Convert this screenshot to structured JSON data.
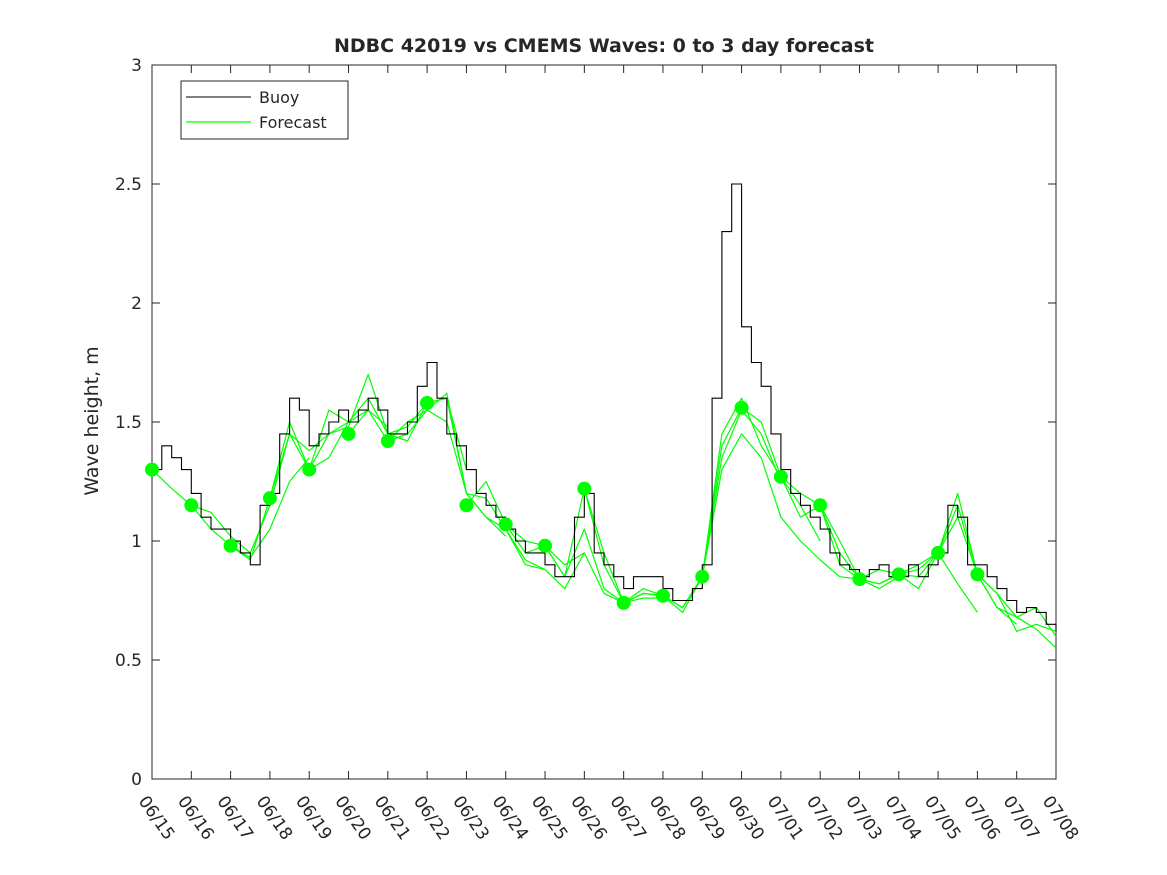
{
  "chart_data": {
    "type": "line",
    "title": "NDBC 42019 vs CMEMS Waves: 0 to 3 day forecast",
    "xlabel": "",
    "ylabel": "Wave height, m",
    "ylim": [
      0,
      3
    ],
    "yticks": [
      "0",
      "0.5",
      "1",
      "1.5",
      "2",
      "2.5",
      "3"
    ],
    "xticks": [
      "06/15",
      "06/16",
      "06/17",
      "06/18",
      "06/19",
      "06/20",
      "06/21",
      "06/22",
      "06/23",
      "06/24",
      "06/25",
      "06/26",
      "06/27",
      "06/28",
      "06/29",
      "06/30",
      "07/01",
      "07/02",
      "07/03",
      "07/04",
      "07/05",
      "07/06",
      "07/07",
      "07/08"
    ],
    "legend": {
      "position": "top-left",
      "entries": [
        "Buoy",
        "Forecast"
      ]
    },
    "grid": false,
    "colors": {
      "buoy": "#000000",
      "forecast": "#00ff00"
    },
    "buoy": {
      "name": "Buoy",
      "x": [
        0,
        0.25,
        0.5,
        0.75,
        1,
        1.25,
        1.5,
        1.75,
        2,
        2.25,
        2.5,
        2.75,
        3,
        3.25,
        3.5,
        3.75,
        4,
        4.25,
        4.5,
        4.75,
        5,
        5.25,
        5.5,
        5.75,
        6,
        6.25,
        6.5,
        6.75,
        7,
        7.25,
        7.5,
        7.75,
        8,
        8.25,
        8.5,
        8.75,
        9,
        9.25,
        9.5,
        9.75,
        10,
        10.25,
        10.5,
        10.75,
        11,
        11.25,
        11.5,
        11.75,
        12,
        12.25,
        12.5,
        12.75,
        13,
        13.25,
        13.5,
        13.75,
        14,
        14.25,
        14.5,
        14.75,
        15,
        15.25,
        15.5,
        15.75,
        16,
        16.25,
        16.5,
        16.75,
        17,
        17.25,
        17.5,
        17.75,
        18,
        18.25,
        18.5,
        18.75,
        19,
        19.25,
        19.5,
        19.75,
        20,
        20.25,
        20.5,
        20.75,
        21,
        21.25,
        21.5,
        21.75,
        22,
        22.25,
        22.5,
        22.75,
        23
      ],
      "y": [
        1.3,
        1.4,
        1.35,
        1.3,
        1.2,
        1.1,
        1.05,
        1.05,
        1.0,
        0.95,
        0.9,
        1.15,
        1.2,
        1.45,
        1.6,
        1.55,
        1.4,
        1.45,
        1.5,
        1.55,
        1.5,
        1.55,
        1.6,
        1.55,
        1.45,
        1.45,
        1.5,
        1.65,
        1.75,
        1.6,
        1.45,
        1.4,
        1.3,
        1.2,
        1.15,
        1.1,
        1.05,
        1.0,
        0.95,
        0.95,
        0.9,
        0.85,
        0.85,
        1.1,
        1.2,
        0.95,
        0.9,
        0.85,
        0.8,
        0.85,
        0.85,
        0.85,
        0.8,
        0.75,
        0.75,
        0.8,
        0.9,
        1.6,
        2.3,
        2.5,
        1.9,
        1.75,
        1.65,
        1.45,
        1.3,
        1.2,
        1.15,
        1.1,
        1.05,
        0.95,
        0.9,
        0.88,
        0.85,
        0.88,
        0.9,
        0.85,
        0.85,
        0.9,
        0.85,
        0.9,
        0.95,
        1.15,
        1.1,
        0.9,
        0.9,
        0.85,
        0.8,
        0.75,
        0.7,
        0.72,
        0.7,
        0.65,
        0.62
      ]
    },
    "forecast_runs": [
      {
        "name": "Forecast",
        "x": [
          0,
          0.5,
          1,
          1.5,
          2,
          2.5,
          3,
          3.5,
          4
        ],
        "y": [
          1.3,
          1.22,
          1.15,
          1.05,
          0.98,
          0.93,
          1.05,
          1.25,
          1.35
        ]
      },
      {
        "name": "Forecast",
        "x": [
          1,
          1.5,
          2,
          2.5,
          3,
          3.5,
          4,
          4.5,
          5
        ],
        "y": [
          1.15,
          1.12,
          1.02,
          0.95,
          1.15,
          1.45,
          1.3,
          1.35,
          1.5
        ]
      },
      {
        "name": "Forecast",
        "x": [
          2,
          2.5,
          3,
          3.5,
          4,
          4.5,
          5,
          5.5,
          6
        ],
        "y": [
          0.98,
          0.92,
          1.18,
          1.45,
          1.38,
          1.45,
          1.5,
          1.55,
          1.48
        ]
      },
      {
        "name": "Forecast",
        "x": [
          3,
          3.5,
          4,
          4.5,
          5,
          5.5,
          6,
          6.5,
          7
        ],
        "y": [
          1.18,
          1.5,
          1.3,
          1.55,
          1.5,
          1.6,
          1.45,
          1.48,
          1.58
        ]
      },
      {
        "name": "Forecast",
        "x": [
          4,
          4.5,
          5,
          5.5,
          6,
          6.5,
          7,
          7.5,
          8
        ],
        "y": [
          1.3,
          1.45,
          1.48,
          1.7,
          1.45,
          1.42,
          1.58,
          1.6,
          1.3
        ]
      },
      {
        "name": "Forecast",
        "x": [
          5,
          5.5,
          6,
          6.5,
          7,
          7.5,
          8,
          8.5,
          9
        ],
        "y": [
          1.45,
          1.55,
          1.42,
          1.5,
          1.55,
          1.62,
          1.2,
          1.1,
          1.02
        ]
      },
      {
        "name": "Forecast",
        "x": [
          6,
          6.5,
          7,
          7.5,
          8,
          8.5,
          9,
          9.5,
          10
        ],
        "y": [
          1.42,
          1.45,
          1.55,
          1.5,
          1.2,
          1.18,
          1.05,
          0.92,
          0.88
        ]
      },
      {
        "name": "Forecast",
        "x": [
          7,
          7.5,
          8,
          8.5,
          9,
          9.5,
          10,
          10.5,
          11
        ],
        "y": [
          1.58,
          1.6,
          1.2,
          1.1,
          1.05,
          0.9,
          0.88,
          0.8,
          0.95
        ]
      },
      {
        "name": "Forecast",
        "x": [
          8,
          8.5,
          9,
          9.5,
          10,
          10.5,
          11,
          11.5,
          12
        ],
        "y": [
          1.15,
          1.25,
          1.07,
          0.95,
          0.98,
          0.9,
          0.95,
          0.78,
          0.74
        ]
      },
      {
        "name": "Forecast",
        "x": [
          9,
          9.5,
          10,
          10.5,
          11,
          11.5,
          12,
          12.5,
          13
        ],
        "y": [
          1.07,
          1.0,
          0.98,
          0.85,
          1.05,
          0.8,
          0.74,
          0.76,
          0.76
        ]
      },
      {
        "name": "Forecast",
        "x": [
          10,
          10.5,
          11,
          11.5,
          12,
          12.5,
          13,
          13.5,
          14
        ],
        "y": [
          0.98,
          0.85,
          1.22,
          0.9,
          0.74,
          0.78,
          0.77,
          0.72,
          0.85
        ]
      },
      {
        "name": "Forecast",
        "x": [
          11,
          11.5,
          12,
          12.5,
          13,
          13.5,
          14,
          14.5,
          15
        ],
        "y": [
          1.22,
          0.95,
          0.74,
          0.8,
          0.77,
          0.72,
          0.85,
          1.4,
          1.56
        ]
      },
      {
        "name": "Forecast",
        "x": [
          12,
          12.5,
          13,
          13.5,
          14,
          14.5,
          15,
          15.5,
          16
        ],
        "y": [
          0.74,
          0.78,
          0.77,
          0.7,
          0.85,
          1.35,
          1.55,
          1.45,
          1.25
        ]
      },
      {
        "name": "Forecast",
        "x": [
          13,
          13.5,
          14,
          14.5,
          15,
          15.5,
          16,
          16.5,
          17
        ],
        "y": [
          0.77,
          0.72,
          0.85,
          1.45,
          1.6,
          1.4,
          1.27,
          1.15,
          1.0
        ]
      },
      {
        "name": "Forecast",
        "x": [
          14,
          14.5,
          15,
          15.5,
          16,
          16.5,
          17,
          17.5,
          18
        ],
        "y": [
          0.85,
          1.3,
          1.45,
          1.35,
          1.1,
          1.0,
          0.92,
          0.85,
          0.84
        ]
      },
      {
        "name": "Forecast",
        "x": [
          15,
          15.5,
          16,
          16.5,
          17,
          17.5,
          18,
          18.5,
          19
        ],
        "y": [
          1.56,
          1.5,
          1.27,
          1.2,
          1.15,
          0.95,
          0.84,
          0.8,
          0.85
        ]
      },
      {
        "name": "Forecast",
        "x": [
          16,
          16.5,
          17,
          17.5,
          18,
          18.5,
          19,
          19.5,
          20
        ],
        "y": [
          1.27,
          1.1,
          1.15,
          0.9,
          0.84,
          0.82,
          0.86,
          0.88,
          0.95
        ]
      },
      {
        "name": "Forecast",
        "x": [
          17,
          17.5,
          18,
          18.5,
          19,
          19.5,
          20,
          20.5,
          21
        ],
        "y": [
          1.15,
          1.0,
          0.84,
          0.82,
          0.86,
          0.8,
          0.95,
          0.82,
          0.7
        ]
      },
      {
        "name": "Forecast",
        "x": [
          18,
          18.5,
          19,
          19.5,
          20,
          20.5,
          21,
          21.5,
          22
        ],
        "y": [
          0.84,
          0.88,
          0.86,
          0.9,
          0.95,
          1.2,
          0.86,
          0.72,
          0.65
        ]
      },
      {
        "name": "Forecast",
        "x": [
          19,
          19.5,
          20,
          20.5,
          21,
          21.5,
          22,
          22.5,
          23
        ],
        "y": [
          0.86,
          0.85,
          0.95,
          1.1,
          0.86,
          0.72,
          0.68,
          0.63,
          0.55
        ]
      },
      {
        "name": "Forecast",
        "x": [
          20,
          20.5,
          21,
          21.5,
          22,
          22.5,
          23
        ],
        "y": [
          0.95,
          1.15,
          0.86,
          0.78,
          0.68,
          0.72,
          0.6
        ]
      },
      {
        "name": "Forecast",
        "x": [
          21,
          21.5,
          22,
          22.5,
          23
        ],
        "y": [
          0.86,
          0.78,
          0.62,
          0.65,
          0.62
        ]
      }
    ],
    "forecast_start_points": {
      "x": [
        0,
        1,
        2,
        3,
        4,
        5,
        6,
        7,
        8,
        9,
        10,
        11,
        12,
        13,
        14,
        15,
        16,
        17,
        18,
        19,
        20,
        21
      ],
      "y": [
        1.3,
        1.15,
        0.98,
        1.18,
        1.3,
        1.45,
        1.42,
        1.58,
        1.15,
        1.07,
        0.98,
        1.22,
        0.74,
        0.77,
        0.85,
        1.56,
        1.27,
        1.15,
        0.84,
        0.86,
        0.95,
        0.86
      ]
    }
  }
}
